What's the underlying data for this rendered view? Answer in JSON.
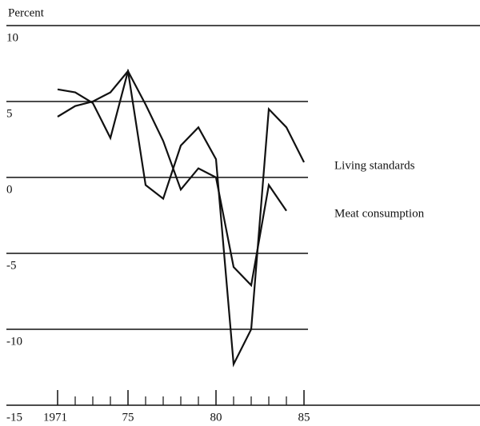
{
  "chart_data": {
    "type": "line",
    "y_axis_label": "Percent",
    "x": [
      1971,
      1972,
      1973,
      1974,
      1975,
      1976,
      1977,
      1978,
      1979,
      1980,
      1981,
      1982,
      1983,
      1984,
      1985
    ],
    "series": [
      {
        "name": "Living standards",
        "color": "#111111",
        "values": [
          4.0,
          4.7,
          5.0,
          5.6,
          7.0,
          -0.5,
          -1.4,
          2.1,
          3.3,
          1.2,
          -12.3,
          -10.0,
          4.5,
          3.3,
          1.0
        ]
      },
      {
        "name": "Meat consumption",
        "color": "#111111",
        "values": [
          5.8,
          5.6,
          4.9,
          2.6,
          7.0,
          4.8,
          2.4,
          -0.8,
          0.6,
          0.0,
          -5.9,
          -7.1,
          -0.5,
          -2.2,
          null
        ]
      }
    ],
    "xlim": [
      1971,
      1985
    ],
    "xticks": [
      1971,
      {
        "value": 1975,
        "label": "75"
      },
      {
        "value": 1980,
        "label": "80"
      },
      {
        "value": 1985,
        "label": "85"
      }
    ],
    "xminor_ticks": [
      1972,
      1973,
      1974,
      1976,
      1977,
      1978,
      1979,
      1981,
      1982,
      1983,
      1984
    ],
    "ylim": [
      -15,
      10
    ],
    "yticks": [
      10,
      5,
      0,
      -5,
      -10,
      -15
    ],
    "grid": true
  }
}
